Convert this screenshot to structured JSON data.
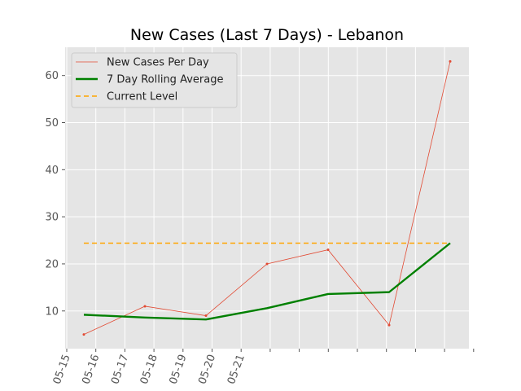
{
  "chart_data": {
    "type": "line",
    "title": "New Cases (Last 7 Days) - Lebanon",
    "xlabel": "",
    "ylabel": "",
    "grid": true,
    "legend_position": "top-left",
    "x_tick_labels": [
      "05-15",
      "05-16",
      "05-17",
      "05-18",
      "05-19",
      "05-20",
      "05-21"
    ],
    "y_ticks": [
      10,
      20,
      30,
      40,
      50,
      60
    ],
    "ylim": [
      2,
      66
    ],
    "x": [
      1,
      2,
      3,
      4,
      5,
      6,
      7
    ],
    "series": [
      {
        "name": "New Cases Per Day",
        "color": "#e24a33",
        "style": "thin line with dot markers",
        "values": [
          5,
          11,
          9,
          20,
          23,
          7,
          63
        ]
      },
      {
        "name": "7 Day Rolling Average",
        "color": "#008000",
        "style": "thick line",
        "values": [
          9.2,
          8.6,
          8.2,
          10.6,
          13.6,
          14.0,
          24.4
        ]
      },
      {
        "name": "Current Level",
        "color": "#ffa500",
        "style": "dashed line",
        "values": [
          24.4,
          24.4,
          24.4,
          24.4,
          24.4,
          24.4,
          24.4
        ]
      }
    ]
  }
}
